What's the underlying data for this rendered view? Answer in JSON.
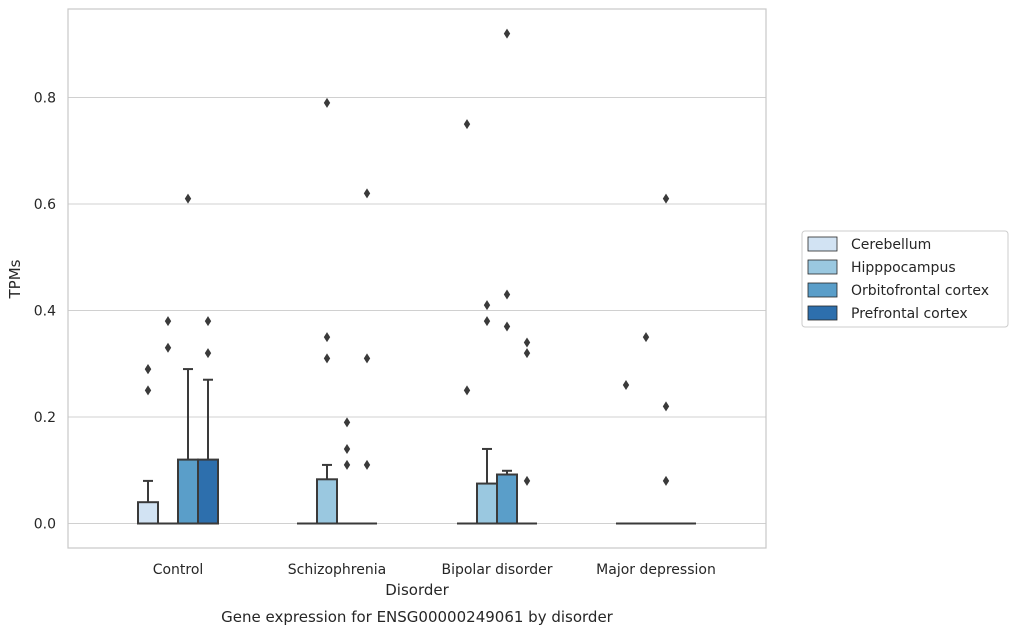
{
  "chart_data": {
    "type": "box",
    "title": "",
    "caption": "Gene expression for ENSG00000249061 by disorder",
    "xlabel": "Disorder",
    "ylabel": "TPMs",
    "categories": [
      "Control",
      "Schizophrenia",
      "Bipolar disorder",
      "Major depression"
    ],
    "ylim": [
      -0.045,
      0.965
    ],
    "yticks": [
      "0.0",
      "0.2",
      "0.4",
      "0.6",
      "0.8"
    ],
    "grid": "horizontal",
    "legend_position": "right",
    "series": [
      {
        "name": "Cerebellum",
        "color": "#d2e3f3",
        "boxes": [
          {
            "q1": 0.0,
            "median": 0.0,
            "q3": 0.04,
            "whisker_low": 0.0,
            "whisker_high": 0.08,
            "outliers": [
              0.25,
              0.29,
              0.29
            ]
          },
          {
            "q1": 0.0,
            "median": 0.0,
            "q3": 0.0,
            "whisker_low": 0.0,
            "whisker_high": 0.0,
            "outliers": []
          },
          {
            "q1": 0.0,
            "median": 0.0,
            "q3": 0.0,
            "whisker_low": 0.0,
            "whisker_high": 0.0,
            "outliers": [
              0.25,
              0.75
            ]
          },
          {
            "q1": 0.0,
            "median": 0.0,
            "q3": 0.0,
            "whisker_low": 0.0,
            "whisker_high": 0.0,
            "outliers": [
              0.26
            ]
          }
        ]
      },
      {
        "name": "Hipppocampus",
        "color": "#9ac8e0",
        "boxes": [
          {
            "q1": 0.0,
            "median": 0.0,
            "q3": 0.0,
            "whisker_low": 0.0,
            "whisker_high": 0.0,
            "outliers": [
              0.33,
              0.38
            ]
          },
          {
            "q1": 0.0,
            "median": 0.0,
            "q3": 0.083,
            "whisker_low": 0.0,
            "whisker_high": 0.11,
            "outliers": [
              0.31,
              0.35,
              0.79
            ]
          },
          {
            "q1": 0.0,
            "median": 0.0,
            "q3": 0.075,
            "whisker_low": 0.0,
            "whisker_high": 0.14,
            "outliers": [
              0.38,
              0.41
            ]
          },
          {
            "q1": 0.0,
            "median": 0.0,
            "q3": 0.0,
            "whisker_low": 0.0,
            "whisker_high": 0.0,
            "outliers": [
              0.35
            ]
          }
        ]
      },
      {
        "name": "Orbitofrontal cortex",
        "color": "#5a9ec9",
        "boxes": [
          {
            "q1": 0.0,
            "median": 0.0,
            "q3": 0.12,
            "whisker_low": 0.0,
            "whisker_high": 0.29,
            "outliers": [
              0.61
            ]
          },
          {
            "q1": 0.0,
            "median": 0.0,
            "q3": 0.0,
            "whisker_low": 0.0,
            "whisker_high": 0.0,
            "outliers": [
              0.11,
              0.14,
              0.19
            ]
          },
          {
            "q1": 0.0,
            "median": 0.0,
            "q3": 0.092,
            "whisker_low": 0.0,
            "whisker_high": 0.099,
            "outliers": [
              0.37,
              0.43,
              0.92
            ]
          },
          {
            "q1": 0.0,
            "median": 0.0,
            "q3": 0.0,
            "whisker_low": 0.0,
            "whisker_high": 0.0,
            "outliers": [
              0.08,
              0.22,
              0.61
            ]
          }
        ]
      },
      {
        "name": "Prefrontal cortex",
        "color": "#2d6fad",
        "boxes": [
          {
            "q1": 0.0,
            "median": 0.0,
            "q3": 0.12,
            "whisker_low": 0.0,
            "whisker_high": 0.27,
            "outliers": [
              0.32,
              0.38
            ]
          },
          {
            "q1": 0.0,
            "median": 0.0,
            "q3": 0.0,
            "whisker_low": 0.0,
            "whisker_high": 0.0,
            "outliers": [
              0.11,
              0.31,
              0.62
            ]
          },
          {
            "q1": 0.0,
            "median": 0.0,
            "q3": 0.0,
            "whisker_low": 0.0,
            "whisker_high": 0.0,
            "outliers": [
              0.08,
              0.32,
              0.34
            ]
          },
          {
            "q1": 0.0,
            "median": 0.0,
            "q3": 0.0,
            "whisker_low": 0.0,
            "whisker_high": 0.0,
            "outliers": []
          }
        ]
      }
    ],
    "colors": {
      "edge": "#3a3a3a",
      "grid": "#d0d0d0",
      "frame": "#c8c8c8"
    }
  }
}
